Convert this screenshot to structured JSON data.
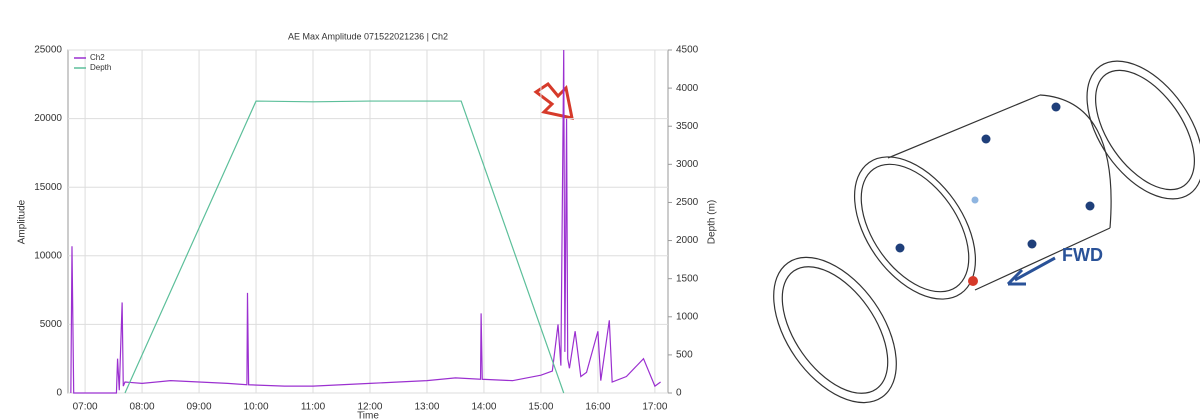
{
  "chart_data": {
    "type": "line",
    "title": "AE Max Amplitude 071522021236 | Ch2",
    "x_label": "Time",
    "y_label": "Amplitude",
    "y2_label": "Depth (m)",
    "xlim": [
      6.7,
      17.23
    ],
    "ylim": [
      0,
      25000
    ],
    "y2lim": [
      0,
      4500
    ],
    "xticks": [
      {
        "value": 7,
        "label": "07:00"
      },
      {
        "value": 8,
        "label": "08:00"
      },
      {
        "value": 9,
        "label": "09:00"
      },
      {
        "value": 10,
        "label": "10:00"
      },
      {
        "value": 11,
        "label": "11:00"
      },
      {
        "value": 12,
        "label": "12:00"
      },
      {
        "value": 13,
        "label": "13:00"
      },
      {
        "value": 14,
        "label": "14:00"
      },
      {
        "value": 15,
        "label": "15:00"
      },
      {
        "value": 16,
        "label": "16:00"
      },
      {
        "value": 17,
        "label": "17:00"
      }
    ],
    "yticks": [
      0,
      5000,
      10000,
      15000,
      20000,
      25000
    ],
    "y2ticks": [
      0,
      500,
      1000,
      1500,
      2000,
      2500,
      3000,
      3500,
      4000,
      4500
    ],
    "grid": true,
    "legend": "top-left",
    "series": [
      {
        "name": "Ch2",
        "color": "#9b30d0",
        "x": [
          6.75,
          6.77,
          6.8,
          7.3,
          7.55,
          7.57,
          7.6,
          7.65,
          7.67,
          7.7,
          8.0,
          8.5,
          9.0,
          9.5,
          9.84,
          9.85,
          9.87,
          10.5,
          11.0,
          11.5,
          12.0,
          12.5,
          13.0,
          13.5,
          13.94,
          13.95,
          13.97,
          14.5,
          15.0,
          15.2,
          15.3,
          15.35,
          15.4,
          15.42,
          15.45,
          15.47,
          15.5,
          15.6,
          15.7,
          15.8,
          16.0,
          16.05,
          16.2,
          16.25,
          16.5,
          16.8,
          17.0,
          17.1
        ],
        "values": [
          0,
          10700,
          0,
          0,
          0,
          2500,
          200,
          6600,
          500,
          800,
          700,
          900,
          800,
          700,
          600,
          7300,
          600,
          500,
          500,
          600,
          700,
          800,
          900,
          1100,
          1000,
          5800,
          1000,
          900,
          1300,
          1600,
          5000,
          2000,
          25000,
          3000,
          20000,
          2500,
          1800,
          4500,
          1200,
          1500,
          4500,
          900,
          5300,
          800,
          1200,
          2500,
          500,
          800
        ]
      },
      {
        "name": "Depth",
        "color": "#5cbf9a",
        "axis": "y2",
        "x": [
          7.7,
          10.0,
          11.0,
          12.0,
          13.0,
          13.6,
          15.4
        ],
        "values": [
          0,
          3830,
          3820,
          3830,
          3830,
          3830,
          0
        ]
      }
    ]
  },
  "diagram": {
    "label": "FWD"
  }
}
